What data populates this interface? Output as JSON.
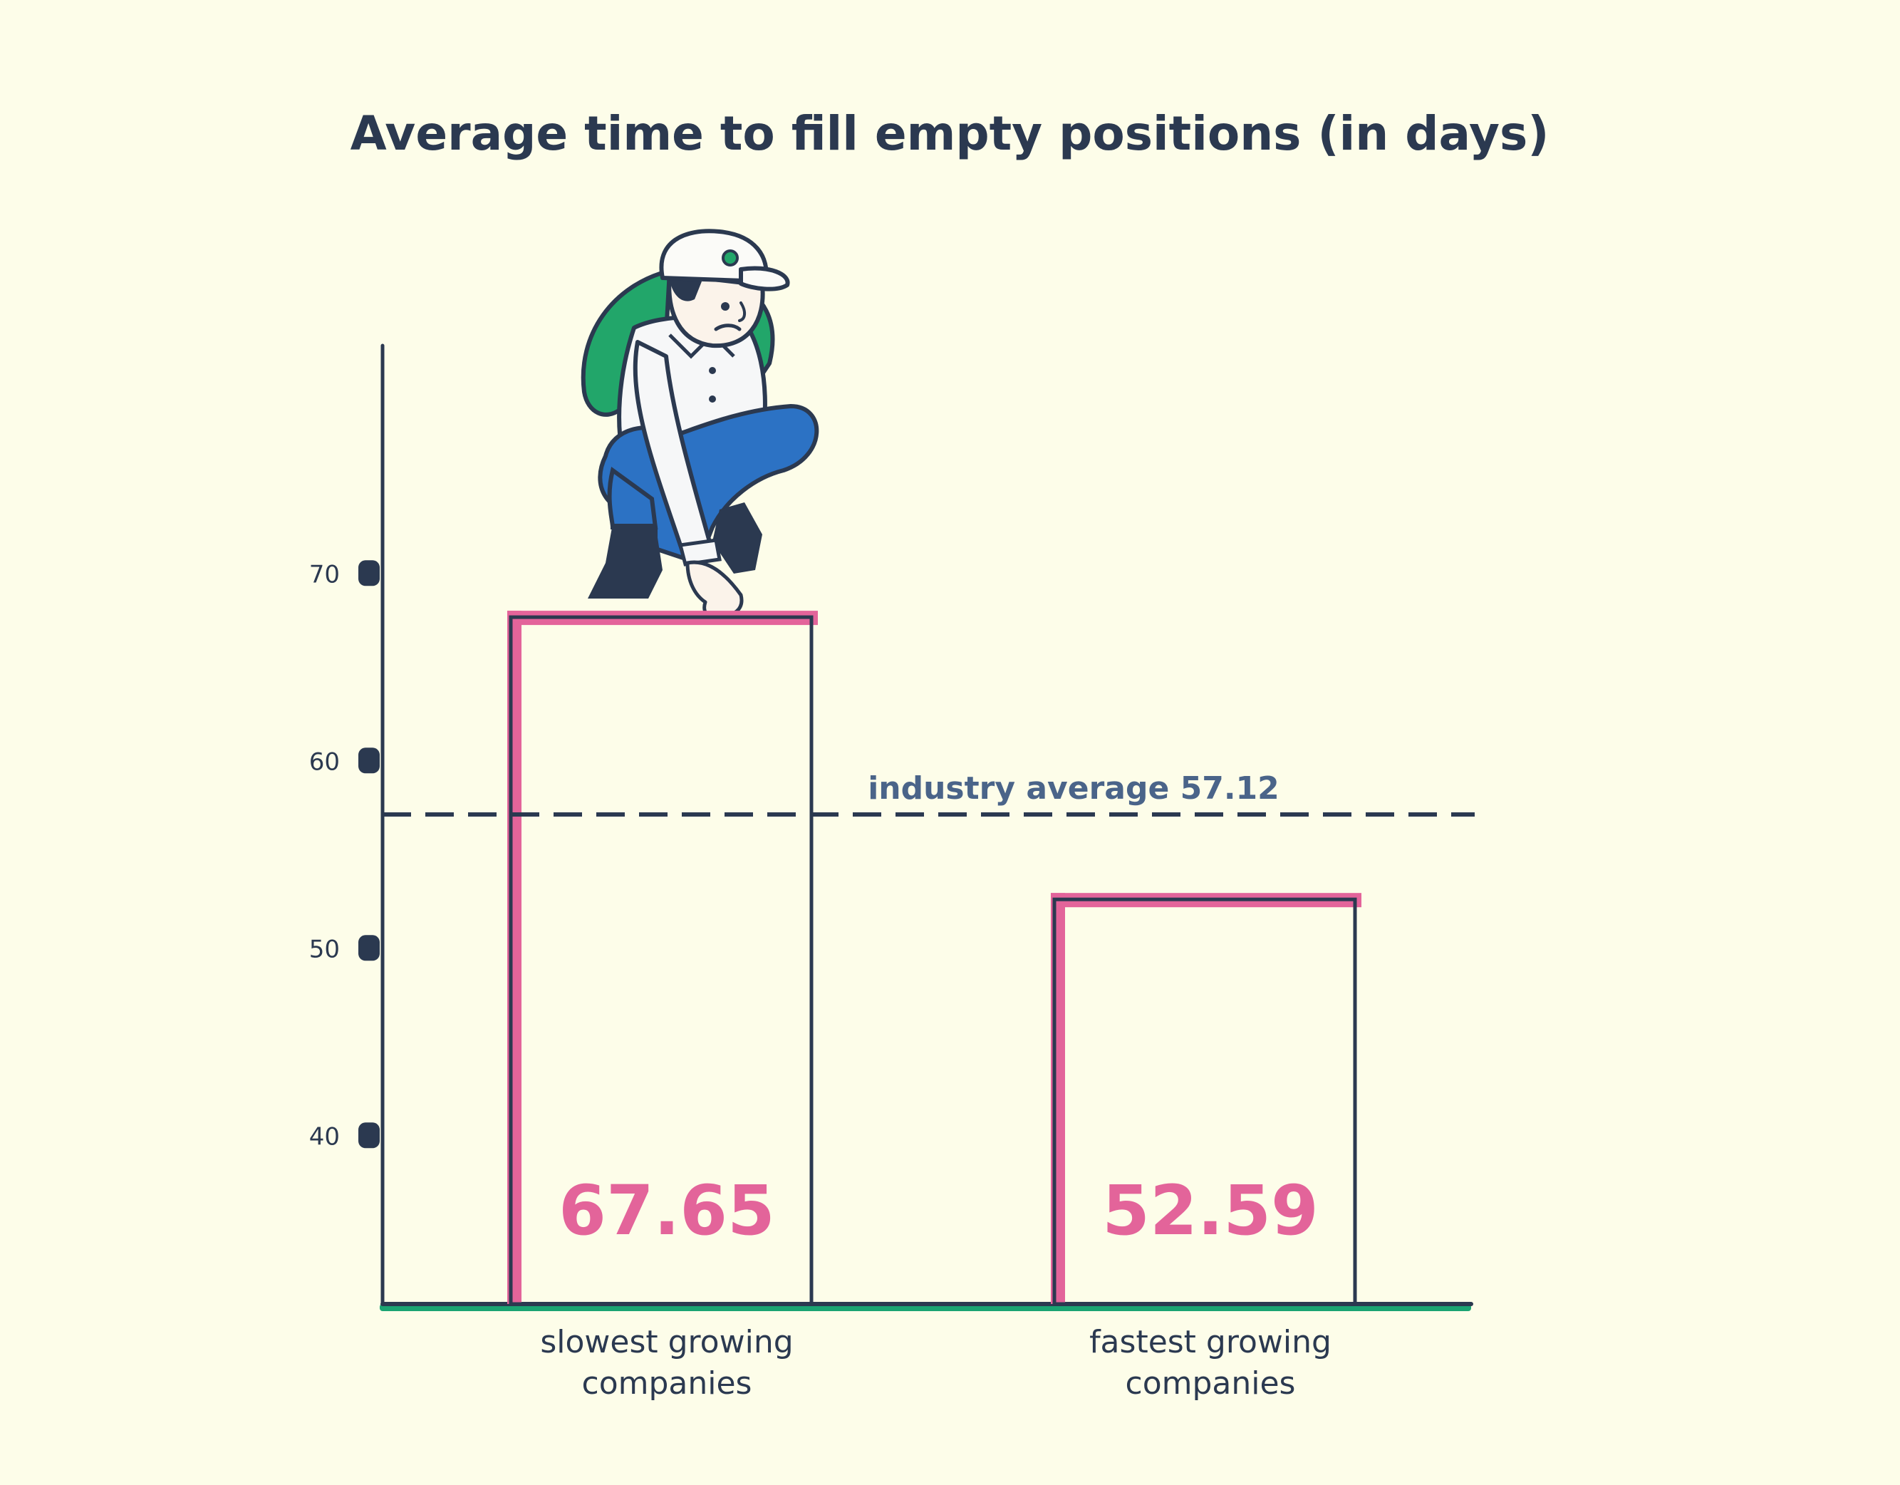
{
  "colors": {
    "background": "#fdfde9",
    "ink": "#2b3950",
    "bar_accent": "#e3649a",
    "baseline": "#1aa472",
    "reference_text": "#4a6489",
    "character_pack": "#22a66a",
    "character_pants": "#2c72c4"
  },
  "illustration": {
    "icon": "hiker-with-backpack-illustration"
  },
  "chart_data": {
    "type": "bar",
    "title": "Average time to fill empty positions (in days)",
    "categories": [
      [
        "slowest growing",
        "companies"
      ],
      [
        "fastest growing",
        "companies"
      ]
    ],
    "values": [
      67.65,
      52.59
    ],
    "value_labels": [
      "67.65",
      "52.59"
    ],
    "yticks": [
      40,
      50,
      60,
      70
    ],
    "ytick_labels": [
      "40",
      "50",
      "60",
      "70"
    ],
    "ylim": [
      31,
      82
    ],
    "xlabel": "",
    "ylabel": "",
    "grid": false,
    "reference_line": {
      "value": 57.12,
      "label": "industry average 57.12"
    }
  }
}
